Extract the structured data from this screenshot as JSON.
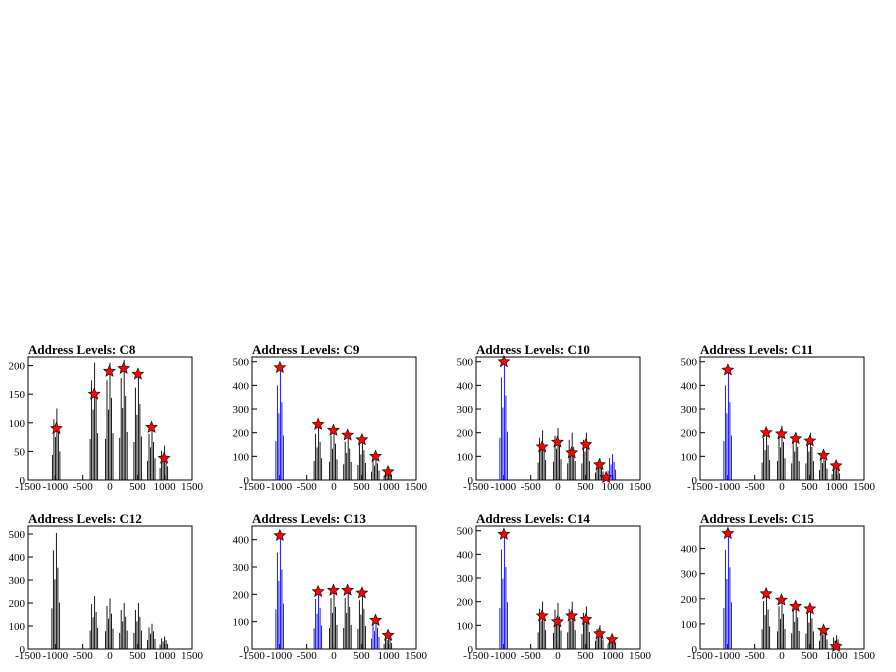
{
  "colors": {
    "hist": "#000000",
    "blue": "#0000ff",
    "marker": "#ff0000",
    "frame": "#000000"
  },
  "chart_data": [
    {
      "type": "histogram",
      "title": "Address Levels: C8",
      "xlim": [
        -1500,
        1500
      ],
      "ylim": [
        0,
        215
      ],
      "xticks": [
        -1500,
        -1000,
        -500,
        0,
        500,
        1000,
        1500
      ],
      "xtick_labels": [
        "-1500",
        "-1000",
        "-500",
        "0",
        "500",
        "1000",
        "1500"
      ],
      "yticks": [
        0,
        50,
        100,
        150,
        200
      ],
      "peaks": [
        {
          "x": -980,
          "y": 125,
          "color": "black"
        },
        {
          "x": -290,
          "y": 205,
          "color": "black"
        },
        {
          "x": -10,
          "y": 205,
          "color": "black"
        },
        {
          "x": 250,
          "y": 210,
          "color": "black"
        },
        {
          "x": 510,
          "y": 190,
          "color": "black"
        },
        {
          "x": 760,
          "y": 95,
          "color": "black"
        },
        {
          "x": 990,
          "y": 60,
          "color": "black"
        }
      ],
      "markers": [
        {
          "x": -980,
          "y": 90
        },
        {
          "x": -290,
          "y": 150
        },
        {
          "x": -10,
          "y": 190
        },
        {
          "x": 250,
          "y": 195
        },
        {
          "x": 510,
          "y": 185
        },
        {
          "x": 760,
          "y": 92
        },
        {
          "x": 990,
          "y": 38
        }
      ]
    },
    {
      "type": "histogram",
      "title": "Address Levels: C9",
      "xlim": [
        -1500,
        1500
      ],
      "ylim": [
        0,
        520
      ],
      "xticks": [
        -1500,
        -1000,
        -500,
        0,
        500,
        1000,
        1500
      ],
      "xtick_labels": [
        "-1500",
        "-1000",
        "-500",
        "0",
        "500",
        "1000",
        "1500"
      ],
      "yticks": [
        0,
        100,
        200,
        300,
        400,
        500
      ],
      "peaks": [
        {
          "x": -990,
          "y": 470,
          "color": "blue"
        },
        {
          "x": -290,
          "y": 230,
          "color": "black"
        },
        {
          "x": -10,
          "y": 220,
          "color": "black"
        },
        {
          "x": 250,
          "y": 190,
          "color": "black"
        },
        {
          "x": 510,
          "y": 180,
          "color": "black"
        },
        {
          "x": 760,
          "y": 100,
          "color": "black"
        },
        {
          "x": 990,
          "y": 50,
          "color": "black"
        }
      ],
      "markers": [
        {
          "x": -990,
          "y": 475
        },
        {
          "x": -290,
          "y": 235
        },
        {
          "x": -10,
          "y": 210
        },
        {
          "x": 250,
          "y": 190
        },
        {
          "x": 510,
          "y": 170
        },
        {
          "x": 760,
          "y": 100
        },
        {
          "x": 990,
          "y": 35
        }
      ]
    },
    {
      "type": "histogram",
      "title": "Address Levels: C10",
      "xlim": [
        -1500,
        1500
      ],
      "ylim": [
        0,
        520
      ],
      "xticks": [
        -1500,
        -1000,
        -500,
        0,
        500,
        1000,
        1500
      ],
      "xtick_labels": [
        "-1500",
        "-1000",
        "-500",
        "0",
        "500",
        "1000",
        "1500"
      ],
      "yticks": [
        0,
        100,
        200,
        300,
        400,
        500
      ],
      "peaks": [
        {
          "x": -990,
          "y": 510,
          "color": "blue"
        },
        {
          "x": -290,
          "y": 210,
          "color": "black"
        },
        {
          "x": -10,
          "y": 220,
          "color": "black"
        },
        {
          "x": 250,
          "y": 200,
          "color": "black"
        },
        {
          "x": 510,
          "y": 200,
          "color": "black"
        },
        {
          "x": 760,
          "y": 90,
          "color": "black"
        },
        {
          "x": 990,
          "y": 110,
          "color": "blue"
        }
      ],
      "markers": [
        {
          "x": -990,
          "y": 500
        },
        {
          "x": -290,
          "y": 140
        },
        {
          "x": -10,
          "y": 160
        },
        {
          "x": 250,
          "y": 115
        },
        {
          "x": 510,
          "y": 150
        },
        {
          "x": 760,
          "y": 65
        },
        {
          "x": 880,
          "y": 10
        }
      ]
    },
    {
      "type": "histogram",
      "title": "Address Levels: C11",
      "xlim": [
        -1500,
        1500
      ],
      "ylim": [
        0,
        520
      ],
      "xticks": [
        -1500,
        -1000,
        -500,
        0,
        500,
        1000,
        1500
      ],
      "xtick_labels": [
        "-1500",
        "-1000",
        "-500",
        "0",
        "500",
        "1000",
        "1500"
      ],
      "yticks": [
        0,
        100,
        200,
        300,
        400,
        500
      ],
      "peaks": [
        {
          "x": -990,
          "y": 470,
          "color": "blue"
        },
        {
          "x": -290,
          "y": 210,
          "color": "black"
        },
        {
          "x": -10,
          "y": 230,
          "color": "black"
        },
        {
          "x": 250,
          "y": 200,
          "color": "black"
        },
        {
          "x": 510,
          "y": 200,
          "color": "black"
        },
        {
          "x": 760,
          "y": 120,
          "color": "black"
        },
        {
          "x": 990,
          "y": 70,
          "color": "black"
        }
      ],
      "markers": [
        {
          "x": -990,
          "y": 465
        },
        {
          "x": -290,
          "y": 200
        },
        {
          "x": -10,
          "y": 195
        },
        {
          "x": 250,
          "y": 175
        },
        {
          "x": 510,
          "y": 165
        },
        {
          "x": 760,
          "y": 105
        },
        {
          "x": 990,
          "y": 60
        }
      ]
    },
    {
      "type": "histogram",
      "title": "Address Levels: C12",
      "xlim": [
        -1500,
        1500
      ],
      "ylim": [
        0,
        535
      ],
      "xticks": [
        -1500,
        -1000,
        -500,
        0,
        500,
        1000,
        1500
      ],
      "xtick_labels": [
        "-1500",
        "-1000",
        "-500",
        "0",
        "500",
        "1000",
        "1500"
      ],
      "yticks": [
        0,
        100,
        200,
        300,
        400,
        500
      ],
      "peaks": [
        {
          "x": -990,
          "y": 505,
          "color": "black"
        },
        {
          "x": -290,
          "y": 230,
          "color": "black"
        },
        {
          "x": -10,
          "y": 220,
          "color": "black"
        },
        {
          "x": 250,
          "y": 200,
          "color": "black"
        },
        {
          "x": 510,
          "y": 200,
          "color": "black"
        },
        {
          "x": 760,
          "y": 110,
          "color": "black"
        },
        {
          "x": 990,
          "y": 55,
          "color": "black"
        }
      ],
      "markers": []
    },
    {
      "type": "histogram",
      "title": "Address Levels: C13",
      "xlim": [
        -1500,
        1500
      ],
      "ylim": [
        0,
        450
      ],
      "xticks": [
        -1500,
        -1000,
        -500,
        0,
        500,
        1000,
        1500
      ],
      "xtick_labels": [
        "-1500",
        "-1000",
        "-500",
        "0",
        "500",
        "1000",
        "1500"
      ],
      "yticks": [
        0,
        100,
        200,
        300,
        400
      ],
      "peaks": [
        {
          "x": -990,
          "y": 415,
          "color": "blue"
        },
        {
          "x": -290,
          "y": 215,
          "color": "blue"
        },
        {
          "x": -10,
          "y": 220,
          "color": "black"
        },
        {
          "x": 250,
          "y": 220,
          "color": "black"
        },
        {
          "x": 510,
          "y": 210,
          "color": "black"
        },
        {
          "x": 760,
          "y": 110,
          "color": "blue"
        },
        {
          "x": 990,
          "y": 55,
          "color": "black"
        }
      ],
      "markers": [
        {
          "x": -990,
          "y": 415
        },
        {
          "x": -290,
          "y": 210
        },
        {
          "x": -10,
          "y": 215
        },
        {
          "x": 250,
          "y": 215
        },
        {
          "x": 510,
          "y": 205
        },
        {
          "x": 760,
          "y": 105
        },
        {
          "x": 990,
          "y": 50
        }
      ]
    },
    {
      "type": "histogram",
      "title": "Address Levels: C14",
      "xlim": [
        -1500,
        1500
      ],
      "ylim": [
        0,
        520
      ],
      "xticks": [
        -1500,
        -1000,
        -500,
        0,
        500,
        1000,
        1500
      ],
      "xtick_labels": [
        "-1500",
        "-1000",
        "-500",
        "0",
        "500",
        "1000",
        "1500"
      ],
      "yticks": [
        0,
        100,
        200,
        300,
        400,
        500
      ],
      "peaks": [
        {
          "x": -990,
          "y": 495,
          "color": "blue"
        },
        {
          "x": -290,
          "y": 200,
          "color": "black"
        },
        {
          "x": -10,
          "y": 195,
          "color": "black"
        },
        {
          "x": 250,
          "y": 200,
          "color": "black"
        },
        {
          "x": 510,
          "y": 180,
          "color": "black"
        },
        {
          "x": 760,
          "y": 100,
          "color": "black"
        },
        {
          "x": 990,
          "y": 55,
          "color": "black"
        }
      ],
      "markers": [
        {
          "x": -990,
          "y": 485
        },
        {
          "x": -290,
          "y": 140
        },
        {
          "x": -10,
          "y": 115
        },
        {
          "x": 250,
          "y": 140
        },
        {
          "x": 510,
          "y": 125
        },
        {
          "x": 760,
          "y": 65
        },
        {
          "x": 990,
          "y": 40
        }
      ]
    },
    {
      "type": "histogram",
      "title": "Address Levels: C15",
      "xlim": [
        -1500,
        1500
      ],
      "ylim": [
        0,
        490
      ],
      "xticks": [
        -1500,
        -1000,
        -500,
        0,
        500,
        1000,
        1500
      ],
      "xtick_labels": [
        "-1500",
        "-1000",
        "-500",
        "0",
        "500",
        "1000",
        "1500"
      ],
      "yticks": [
        0,
        100,
        200,
        300,
        400
      ],
      "peaks": [
        {
          "x": -990,
          "y": 465,
          "color": "blue"
        },
        {
          "x": -290,
          "y": 225,
          "color": "black"
        },
        {
          "x": -10,
          "y": 200,
          "color": "black"
        },
        {
          "x": 250,
          "y": 180,
          "color": "black"
        },
        {
          "x": 510,
          "y": 175,
          "color": "black"
        },
        {
          "x": 760,
          "y": 95,
          "color": "black"
        },
        {
          "x": 990,
          "y": 55,
          "color": "black"
        }
      ],
      "markers": [
        {
          "x": -990,
          "y": 460
        },
        {
          "x": -290,
          "y": 220
        },
        {
          "x": -10,
          "y": 195
        },
        {
          "x": 250,
          "y": 170
        },
        {
          "x": 510,
          "y": 160
        },
        {
          "x": 760,
          "y": 75
        },
        {
          "x": 990,
          "y": 10
        }
      ]
    }
  ]
}
